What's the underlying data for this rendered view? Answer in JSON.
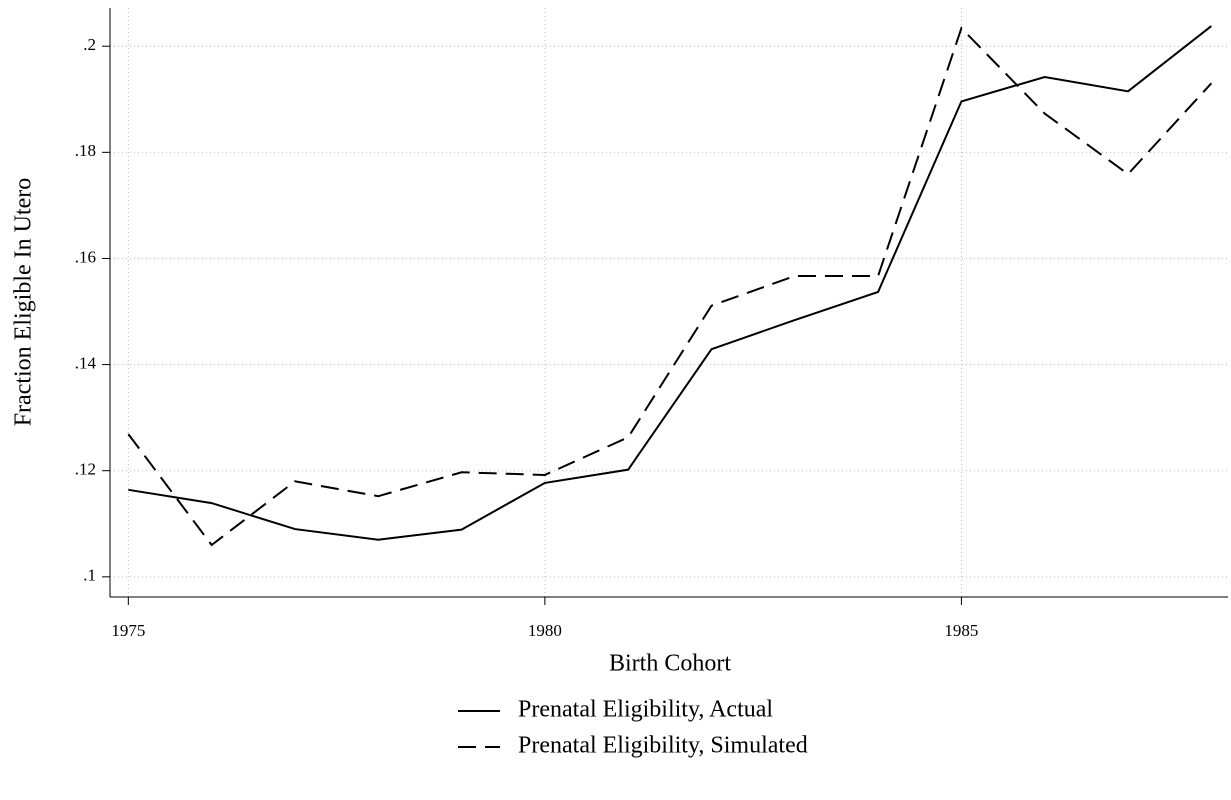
{
  "chart_data": {
    "type": "line",
    "x_label": "Birth Cohort",
    "y_label": "Fraction Eligible In Utero",
    "x": [
      1975,
      1976,
      1977,
      1978,
      1979,
      1980,
      1981,
      1982,
      1983,
      1984,
      1985,
      1986,
      1987,
      1988
    ],
    "series": [
      {
        "name": "Prenatal Eligibility, Actual",
        "color": "#000000",
        "dash": "solid",
        "values": [
          0.1164,
          0.1139,
          0.109,
          0.107,
          0.1089,
          0.1177,
          0.1202,
          0.1429,
          0.1484,
          0.1537,
          0.1896,
          0.1942,
          0.1915,
          0.2038
        ]
      },
      {
        "name": "Prenatal Eligibility, Simulated",
        "color": "#000000",
        "dash": "dashed",
        "values": [
          0.1269,
          0.106,
          0.118,
          0.1152,
          0.1197,
          0.1192,
          0.1263,
          0.1511,
          0.1567,
          0.1567,
          0.2034,
          0.1873,
          0.1759,
          0.193
        ]
      }
    ],
    "xlim": [
      1974.78,
      1988.2
    ],
    "xticks": [
      1975,
      1980,
      1985
    ],
    "ylim": [
      0.0962,
      0.2072
    ],
    "yticks": [
      {
        "value": 0.1,
        "label": ".1"
      },
      {
        "value": 0.12,
        "label": ".12"
      },
      {
        "value": 0.14,
        "label": ".14"
      },
      {
        "value": 0.16,
        "label": ".16"
      },
      {
        "value": 0.18,
        "label": ".18"
      },
      {
        "value": 0.2,
        "label": ".2"
      }
    ],
    "grid": true,
    "legend": "bottom"
  }
}
